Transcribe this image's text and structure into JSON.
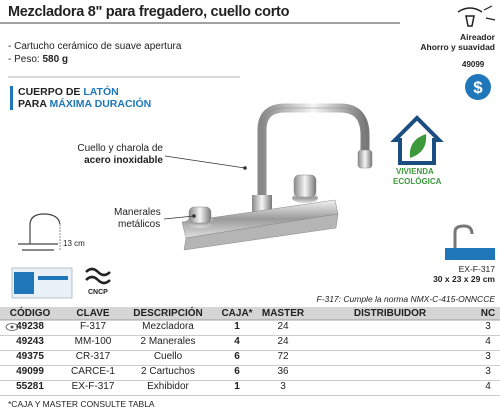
{
  "header": {
    "title": "Mezcladora 8\" para fregadero, cuello corto"
  },
  "features": {
    "item1": "- Cartucho cerámico de suave apertura",
    "item2_label": "- Peso: ",
    "item2_value": "580 g"
  },
  "highlight": {
    "line1_a": "CUERPO DE ",
    "line1_b": "LATÓN",
    "line2_a": "PARA ",
    "line2_b": "MÁXIMA DURACIÓN"
  },
  "callouts": {
    "spout_1": "Cuello y charola de",
    "spout_2": "acero inoxidable",
    "handles_1": "Manerales",
    "handles_2": "metálicos",
    "dimension": "13 cm"
  },
  "badges": {
    "aerator_1": "Aireador",
    "aerator_2": "Ahorro y suavidad",
    "code": "49099",
    "eco_1": "VIVIENDA",
    "eco_2": "ECOLÓGICA",
    "cert": "CNCP"
  },
  "display": {
    "code": "EX-F-317",
    "size": "30 x 23 x 29 cm"
  },
  "norm": "F-317: Cumple la norma NMX-C-415-ONNCCE",
  "table": {
    "columns": [
      "CÓDIGO",
      "CLAVE",
      "DESCRIPCIÓN",
      "CAJA*",
      "MASTER",
      "DISTRIBUIDOR",
      "NC"
    ],
    "rows": [
      [
        "49238",
        "F-317",
        "Mezcladora",
        1,
        24,
        null,
        3
      ],
      [
        "49243",
        "MM-100",
        "2 Manerales",
        4,
        24,
        null,
        4
      ],
      [
        "49375",
        "CR-317",
        "Cuello",
        6,
        72,
        null,
        3
      ],
      [
        "49099",
        "CARCE-1",
        "2 Cartuchos",
        6,
        36,
        null,
        3
      ],
      [
        "55281",
        "EX-F-317",
        "Exhibidor",
        1,
        3,
        null,
        4
      ]
    ]
  },
  "footnote": "*CAJA Y MASTER CONSULTE TABLA"
}
